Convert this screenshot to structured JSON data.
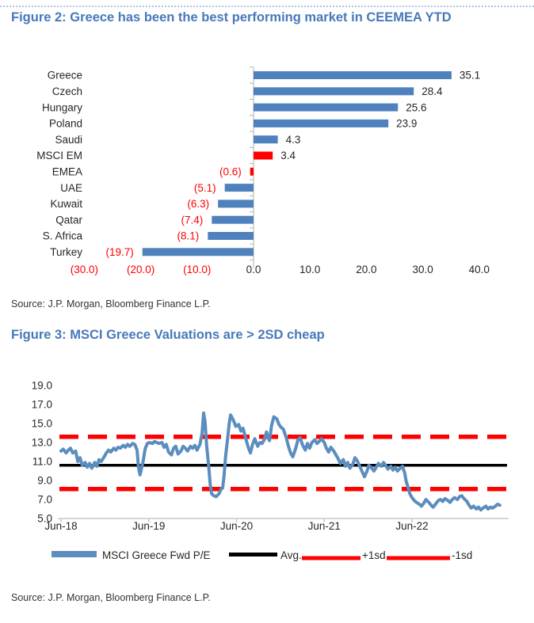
{
  "figure2": {
    "title": "Figure 2: Greece has been the best performing market in CEEMEA YTD",
    "source": "Source: J.P. Morgan, Bloomberg Finance L.P."
  },
  "figure3": {
    "title": "Figure 3: MSCI Greece Valuations are > 2SD cheap",
    "source": "Source: J.P. Morgan, Bloomberg Finance L.P."
  },
  "colors": {
    "title_blue": "#4779b9",
    "bar_blue": "#4F81BD",
    "line_blue": "#5B8DBE",
    "highlight_red": "#FF0000",
    "negative_text_red": "#FF0000",
    "axis_grey": "#BFBFBF",
    "chart_text": "#262626"
  },
  "chart_data": [
    {
      "id": "figure2",
      "type": "bar",
      "orientation": "horizontal",
      "title": "Figure 2: Greece has been the best performing market in CEEMEA YTD",
      "categories": [
        "Greece",
        "Czech",
        "Hungary",
        "Poland",
        "Saudi",
        "MSCI EM",
        "EMEA",
        "UAE",
        "Kuwait",
        "Qatar",
        "S. Africa",
        "Turkey"
      ],
      "values": [
        35.1,
        28.4,
        25.6,
        23.9,
        4.3,
        3.4,
        -0.6,
        -5.1,
        -6.3,
        -7.4,
        -8.1,
        -19.7
      ],
      "data_labels": [
        "35.1",
        "28.4",
        "25.6",
        "23.9",
        "4.3",
        "3.4",
        "(0.6)",
        "(5.1)",
        "(6.3)",
        "(7.4)",
        "(8.1)",
        "(19.7)"
      ],
      "bar_colors": [
        "blue",
        "blue",
        "blue",
        "blue",
        "blue",
        "red",
        "red",
        "blue",
        "blue",
        "blue",
        "blue",
        "blue"
      ],
      "x_ticks": [
        {
          "label": "(30.0)",
          "value": -30,
          "negative": true
        },
        {
          "label": "(20.0)",
          "value": -20,
          "negative": true
        },
        {
          "label": "(10.0)",
          "value": -10,
          "negative": true
        },
        {
          "label": "0.0",
          "value": 0,
          "negative": false
        },
        {
          "label": "10.0",
          "value": 10,
          "negative": false
        },
        {
          "label": "20.0",
          "value": 20,
          "negative": false
        },
        {
          "label": "30.0",
          "value": 30,
          "negative": false
        },
        {
          "label": "40.0",
          "value": 40,
          "negative": false
        }
      ],
      "xlim": [
        -35,
        43
      ],
      "grid": false
    },
    {
      "id": "figure3",
      "type": "line",
      "title": "Figure 3: MSCI Greece Valuations are > 2SD cheap",
      "ylim": [
        5.0,
        19.8
      ],
      "y_ticks": [
        "19.0",
        "17.0",
        "15.0",
        "13.0",
        "11.0",
        "9.0",
        "7.0",
        "5.0"
      ],
      "x_ticks": [
        {
          "label": "Jun-18",
          "t": 0
        },
        {
          "label": "Jun-19",
          "t": 12
        },
        {
          "label": "Jun-20",
          "t": 24
        },
        {
          "label": "Jun-21",
          "t": 36
        },
        {
          "label": "Jun-22",
          "t": 48
        }
      ],
      "x_unit": "months since Jun-2018",
      "grid": false,
      "legend_position": "bottom",
      "series": [
        {
          "name": "MSCI Greece Fwd P/E",
          "kind": "line",
          "color": "#5B8DBE",
          "points": [
            [
              0,
              12.1
            ],
            [
              0.3,
              12.3
            ],
            [
              0.7,
              11.9
            ],
            [
              1,
              12.2
            ],
            [
              1.3,
              12.4
            ],
            [
              1.6,
              11.9
            ],
            [
              2,
              12.1
            ],
            [
              2.3,
              11.0
            ],
            [
              2.6,
              11.4
            ],
            [
              2.9,
              10.6
            ],
            [
              3.3,
              10.9
            ],
            [
              3.6,
              10.4
            ],
            [
              3.9,
              10.8
            ],
            [
              4.2,
              10.3
            ],
            [
              4.6,
              10.9
            ],
            [
              4.9,
              10.5
            ],
            [
              5.2,
              11.2
            ],
            [
              5.5,
              11.0
            ],
            [
              5.9,
              11.5
            ],
            [
              6.2,
              11.9
            ],
            [
              6.5,
              12.2
            ],
            [
              6.8,
              12.0
            ],
            [
              7.2,
              12.4
            ],
            [
              7.5,
              12.2
            ],
            [
              7.8,
              12.5
            ],
            [
              8.1,
              12.4
            ],
            [
              8.5,
              12.7
            ],
            [
              8.8,
              12.5
            ],
            [
              9.1,
              12.8
            ],
            [
              9.4,
              12.6
            ],
            [
              9.8,
              12.9
            ],
            [
              10.1,
              12.8
            ],
            [
              10.4,
              12.2
            ],
            [
              10.6,
              10.4
            ],
            [
              10.8,
              9.6
            ],
            [
              11.2,
              10.9
            ],
            [
              11.5,
              12.3
            ],
            [
              11.8,
              12.9
            ],
            [
              12.1,
              13.0
            ],
            [
              12.5,
              12.9
            ],
            [
              12.8,
              13.1
            ],
            [
              13.1,
              13.0
            ],
            [
              13.4,
              12.9
            ],
            [
              13.8,
              13.0
            ],
            [
              14.1,
              12.5
            ],
            [
              14.4,
              12.8
            ],
            [
              14.7,
              12.0
            ],
            [
              15.1,
              11.7
            ],
            [
              15.4,
              12.4
            ],
            [
              15.7,
              12.6
            ],
            [
              16,
              11.8
            ],
            [
              16.4,
              12.1
            ],
            [
              16.7,
              12.6
            ],
            [
              17,
              12.4
            ],
            [
              17.3,
              12.1
            ],
            [
              17.7,
              12.6
            ],
            [
              18,
              12.4
            ],
            [
              18.3,
              12.7
            ],
            [
              18.6,
              12.2
            ],
            [
              19,
              12.8
            ],
            [
              19.3,
              14.0
            ],
            [
              19.5,
              16.1
            ],
            [
              19.7,
              15.2
            ],
            [
              19.9,
              12.8
            ],
            [
              20.2,
              10.5
            ],
            [
              20.4,
              8.6
            ],
            [
              20.6,
              7.6
            ],
            [
              20.9,
              7.4
            ],
            [
              21.2,
              7.3
            ],
            [
              21.6,
              7.6
            ],
            [
              21.9,
              8.1
            ],
            [
              22.1,
              8.2
            ],
            [
              22.3,
              9.5
            ],
            [
              22.5,
              11.5
            ],
            [
              22.8,
              13.5
            ],
            [
              23,
              15.0
            ],
            [
              23.2,
              15.9
            ],
            [
              23.4,
              15.6
            ],
            [
              23.6,
              15.3
            ],
            [
              23.9,
              14.7
            ],
            [
              24.3,
              14.9
            ],
            [
              24.6,
              14.2
            ],
            [
              24.9,
              14.5
            ],
            [
              25.2,
              13.6
            ],
            [
              25.6,
              12.5
            ],
            [
              25.9,
              11.9
            ],
            [
              26.2,
              12.8
            ],
            [
              26.5,
              13.4
            ],
            [
              26.9,
              12.6
            ],
            [
              27.2,
              13.0
            ],
            [
              27.5,
              12.9
            ],
            [
              27.8,
              13.3
            ],
            [
              28.1,
              14.1
            ],
            [
              28.3,
              13.6
            ],
            [
              28.5,
              13.2
            ],
            [
              28.8,
              14.8
            ],
            [
              29.1,
              15.7
            ],
            [
              29.5,
              15.5
            ],
            [
              29.8,
              14.9
            ],
            [
              30.1,
              14.6
            ],
            [
              30.4,
              14.4
            ],
            [
              30.8,
              13.5
            ],
            [
              31.1,
              12.6
            ],
            [
              31.4,
              11.9
            ],
            [
              31.7,
              11.5
            ],
            [
              32.1,
              12.4
            ],
            [
              32.4,
              13.3
            ],
            [
              32.7,
              13.5
            ],
            [
              33,
              12.8
            ],
            [
              33.4,
              12.2
            ],
            [
              33.7,
              12.9
            ],
            [
              34,
              12.4
            ],
            [
              34.3,
              13.0
            ],
            [
              34.7,
              13.3
            ],
            [
              35,
              12.9
            ],
            [
              35.3,
              13.1
            ],
            [
              35.6,
              13.4
            ],
            [
              36,
              13.0
            ],
            [
              36.3,
              12.4
            ],
            [
              36.6,
              12.0
            ],
            [
              36.9,
              12.5
            ],
            [
              37.3,
              12.1
            ],
            [
              37.6,
              11.7
            ],
            [
              37.9,
              11.3
            ],
            [
              38.2,
              10.8
            ],
            [
              38.6,
              11.2
            ],
            [
              38.9,
              10.5
            ],
            [
              39.2,
              10.9
            ],
            [
              39.5,
              10.3
            ],
            [
              39.9,
              10.7
            ],
            [
              40.2,
              11.4
            ],
            [
              40.5,
              11.1
            ],
            [
              40.8,
              10.6
            ],
            [
              41.2,
              9.9
            ],
            [
              41.5,
              9.4
            ],
            [
              41.8,
              9.9
            ],
            [
              42.1,
              10.6
            ],
            [
              42.5,
              10.3
            ],
            [
              42.8,
              10.0
            ],
            [
              43.1,
              10.4
            ],
            [
              43.4,
              10.8
            ],
            [
              43.8,
              10.5
            ],
            [
              44.1,
              10.9
            ],
            [
              44.4,
              10.6
            ],
            [
              44.7,
              10.2
            ],
            [
              45.1,
              10.5
            ],
            [
              45.4,
              10.1
            ],
            [
              45.7,
              10.4
            ],
            [
              46,
              10.0
            ],
            [
              46.4,
              10.3
            ],
            [
              46.7,
              10.5
            ],
            [
              47,
              9.8
            ],
            [
              47.2,
              8.9
            ],
            [
              47.5,
              8.2
            ],
            [
              47.7,
              7.6
            ],
            [
              48,
              7.2
            ],
            [
              48.3,
              6.9
            ],
            [
              48.6,
              6.7
            ],
            [
              49,
              6.5
            ],
            [
              49.3,
              6.3
            ],
            [
              49.6,
              6.6
            ],
            [
              49.9,
              7.0
            ],
            [
              50.3,
              6.7
            ],
            [
              50.6,
              6.4
            ],
            [
              50.9,
              6.2
            ],
            [
              51.2,
              6.5
            ],
            [
              51.6,
              6.9
            ],
            [
              51.9,
              7.0
            ],
            [
              52.2,
              6.8
            ],
            [
              52.5,
              7.1
            ],
            [
              52.9,
              6.9
            ],
            [
              53.2,
              6.7
            ],
            [
              53.5,
              7.0
            ],
            [
              53.8,
              7.2
            ],
            [
              54.2,
              7.0
            ],
            [
              54.5,
              7.3
            ],
            [
              54.8,
              7.4
            ],
            [
              55.1,
              7.1
            ],
            [
              55.5,
              6.8
            ],
            [
              55.8,
              6.4
            ],
            [
              56.1,
              6.1
            ],
            [
              56.4,
              6.3
            ],
            [
              56.8,
              6.0
            ],
            [
              57.1,
              6.2
            ],
            [
              57.4,
              5.9
            ],
            [
              57.7,
              6.1
            ],
            [
              58.1,
              6.3
            ],
            [
              58.4,
              6.0
            ],
            [
              58.7,
              6.2
            ],
            [
              59,
              6.1
            ],
            [
              59.4,
              6.3
            ],
            [
              59.7,
              6.5
            ],
            [
              60,
              6.4
            ]
          ]
        },
        {
          "name": "Avg.",
          "kind": "hline",
          "color": "#000000",
          "style": "solid",
          "value": 10.6
        },
        {
          "name": "+1sd",
          "kind": "hline",
          "color": "#FF0000",
          "style": "dashed",
          "value": 13.6
        },
        {
          "name": "-1sd",
          "kind": "hline",
          "color": "#FF0000",
          "style": "dashed",
          "value": 8.1
        }
      ]
    }
  ]
}
